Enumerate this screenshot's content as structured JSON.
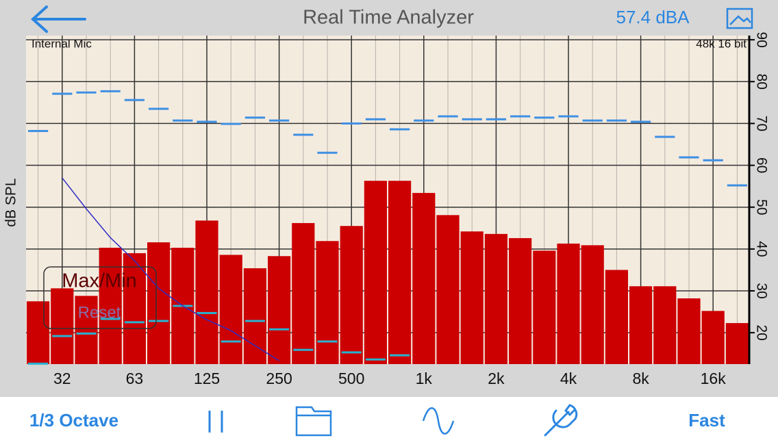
{
  "header": {
    "title": "Real Time Analyzer",
    "level": "57.4 dBA"
  },
  "chart_data": {
    "type": "bar",
    "y_label": "dB SPL",
    "input": "Internal Mic",
    "format": "48k 16 bit",
    "categories": [
      null,
      "32",
      null,
      null,
      "63",
      null,
      null,
      "125",
      null,
      null,
      "250",
      null,
      null,
      "500",
      null,
      null,
      "1k",
      null,
      null,
      "2k",
      null,
      null,
      "4k",
      null,
      null,
      "8k",
      null,
      null,
      "16k",
      null
    ],
    "values": [
      27.5,
      30.6,
      28.8,
      40.3,
      39,
      41.6,
      40.3,
      46.8,
      38.6,
      35.4,
      38.3,
      46.2,
      41.9,
      45.5,
      56.3,
      56.3,
      53.4,
      48.1,
      44.2,
      43.6,
      42.6,
      39.6,
      41.3,
      40.9,
      35,
      31.1,
      31.1,
      28.2,
      25.2,
      22.3
    ],
    "max_values": [
      68.2,
      77.1,
      77.4,
      77.7,
      75.6,
      73.5,
      70.7,
      70.4,
      69.9,
      71.4,
      70.7,
      67.3,
      63,
      70,
      71,
      68.6,
      70.7,
      71.7,
      71,
      71,
      71.7,
      71.4,
      71.7,
      70.7,
      70.7,
      70.4,
      66.8,
      61.9,
      61.2,
      55.2
    ],
    "min_values": [
      12.6,
      19.2,
      19.8,
      23.3,
      22.5,
      22.8,
      26.4,
      24.7,
      17.9,
      22.8,
      20.8,
      15.9,
      17.9,
      15.3,
      13.6,
      14.6,
      null,
      null,
      null,
      null,
      null,
      null,
      null,
      null,
      null,
      null,
      null,
      null,
      null,
      null
    ],
    "curve_values": [
      null,
      57,
      49.6,
      42.7,
      37.2,
      30.6,
      26.4,
      23.1,
      20.5,
      16.9,
      13.3,
      null,
      null,
      null,
      null,
      null,
      null,
      null,
      null,
      null,
      null,
      null,
      null,
      null,
      null,
      null,
      null,
      null,
      null,
      null
    ],
    "ylim": [
      12.5,
      91
    ],
    "yticks": [
      20,
      30,
      40,
      50,
      60,
      70,
      80,
      90
    ],
    "color": "#cc0000",
    "max_color": "#3d8fe3",
    "min_color": "#27b3d2",
    "curve_color": "#2f2fc4",
    "grid": true
  },
  "controls": {
    "button": "Max/Min",
    "reset": "Reset"
  },
  "toolbar": {
    "resolution": "1/3 Octave",
    "speed": "Fast"
  }
}
